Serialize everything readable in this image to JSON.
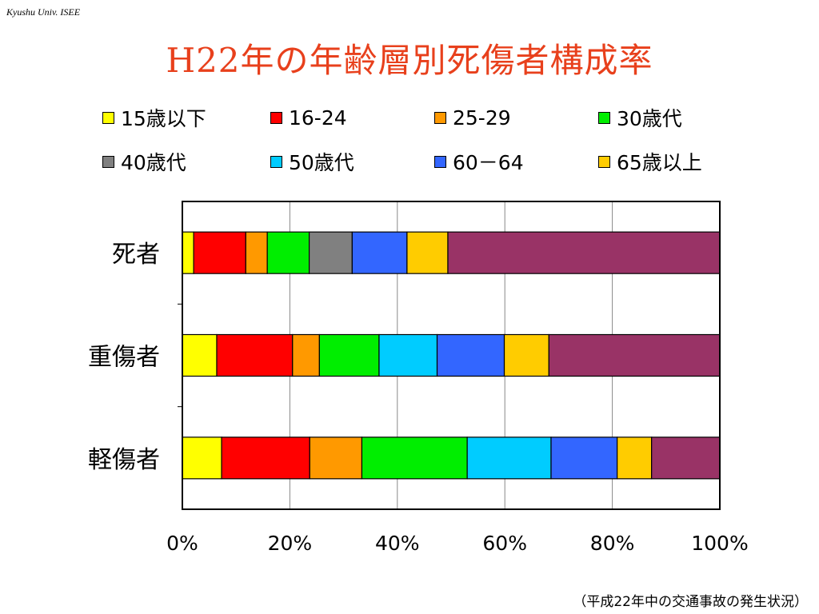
{
  "header_note": "Kyushu Univ. ISEE",
  "title": "H22年の年齢層別死傷者構成率",
  "footnote": "（平成22年中の交通事故の発生状況）",
  "chart_data": {
    "type": "bar",
    "orientation": "horizontal",
    "stacked": "percent",
    "categories": [
      "死者",
      "重傷者",
      "軽傷者"
    ],
    "xlim": [
      0,
      100
    ],
    "x_ticks": [
      "0%",
      "20%",
      "40%",
      "60%",
      "80%",
      "100%"
    ],
    "grid": true,
    "legend_position": "top",
    "series": [
      {
        "name": "15歳以下",
        "color": "#ffff00",
        "values": [
          2.1,
          6.4,
          7.3
        ]
      },
      {
        "name": "16-24",
        "color": "#ff0000",
        "values": [
          9.7,
          14.1,
          16.4
        ]
      },
      {
        "name": "25-29",
        "color": "#ff9900",
        "values": [
          4.0,
          5.0,
          9.7
        ]
      },
      {
        "name": "30歳代",
        "color": "#00ee00",
        "values": [
          7.8,
          11.1,
          19.6
        ]
      },
      {
        "name": "40歳代",
        "color": "#808080",
        "values": [
          8.0,
          0,
          0
        ]
      },
      {
        "name": "50歳代",
        "color": "#00ccff",
        "values": [
          0,
          10.8,
          15.6
        ]
      },
      {
        "name": "60－64",
        "color": "#3366ff",
        "values": [
          10.2,
          12.5,
          12.3
        ]
      },
      {
        "name": "65歳以上",
        "color": "#ffcc00",
        "values": [
          7.6,
          8.3,
          6.4
        ]
      },
      {
        "name": "",
        "color": "#993366",
        "values": [
          50.6,
          31.8,
          12.7
        ]
      }
    ]
  }
}
